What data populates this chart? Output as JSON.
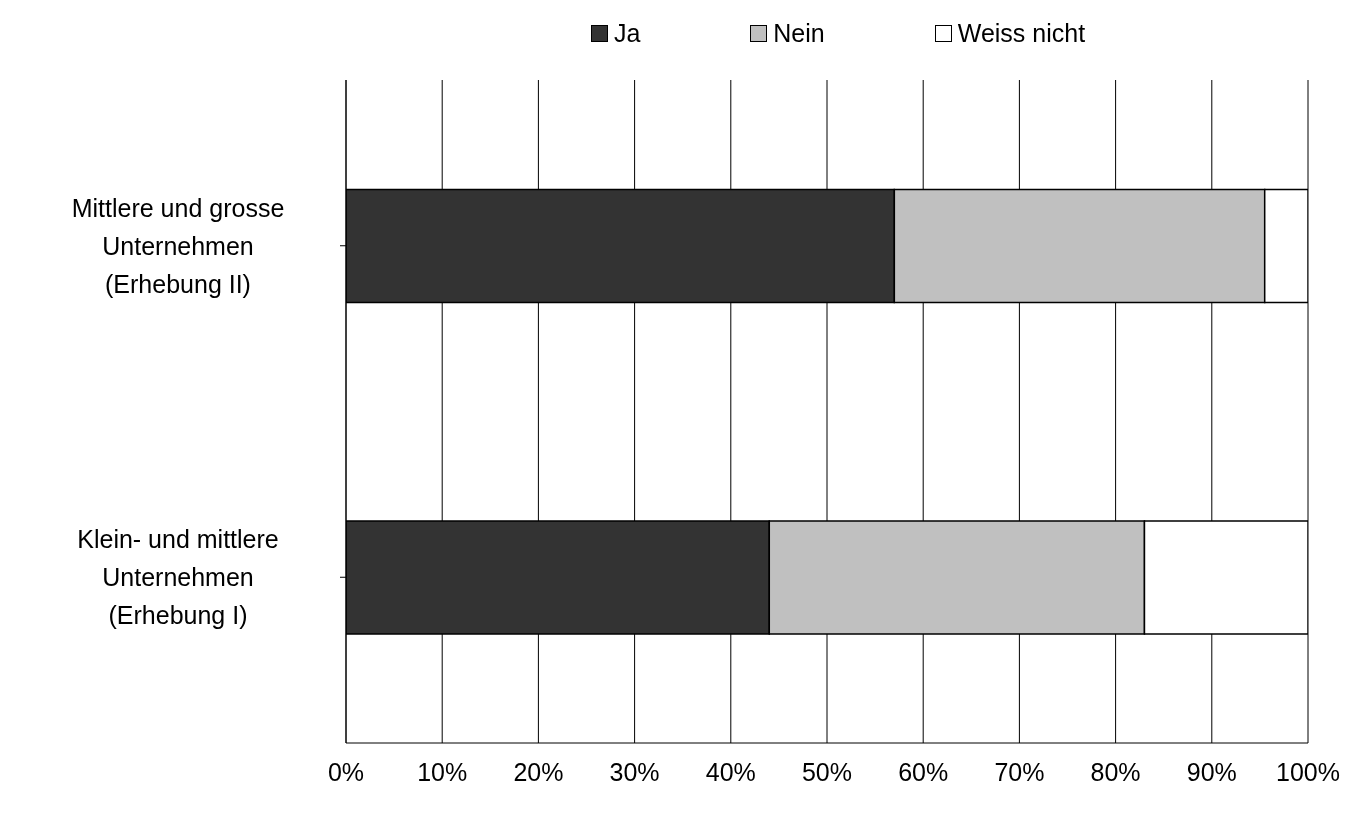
{
  "chart_data": {
    "type": "bar",
    "orientation": "horizontal",
    "stacked": true,
    "categories": [
      "Mittlere und grosse\nUnternehmen\n(Erhebung II)",
      "Klein- und mittlere\nUnternehmen\n(Erhebung I)"
    ],
    "series": [
      {
        "name": "Ja",
        "color": "#333333",
        "values": [
          57,
          44
        ]
      },
      {
        "name": "Nein",
        "color": "#c0c0c0",
        "values": [
          38.5,
          39
        ]
      },
      {
        "name": "Weiss nicht",
        "color": "#ffffff",
        "values": [
          4.5,
          17
        ]
      }
    ],
    "xlim": [
      0,
      100
    ],
    "xticks": [
      {
        "value": 0,
        "label": "0%"
      },
      {
        "value": 10,
        "label": "10%"
      },
      {
        "value": 20,
        "label": "20%"
      },
      {
        "value": 30,
        "label": "30%"
      },
      {
        "value": 40,
        "label": "40%"
      },
      {
        "value": 50,
        "label": "50%"
      },
      {
        "value": 60,
        "label": "60%"
      },
      {
        "value": 70,
        "label": "70%"
      },
      {
        "value": 80,
        "label": "80%"
      },
      {
        "value": 90,
        "label": "90%"
      },
      {
        "value": 100,
        "label": "100%"
      }
    ],
    "grid": "x",
    "legend": "top"
  }
}
